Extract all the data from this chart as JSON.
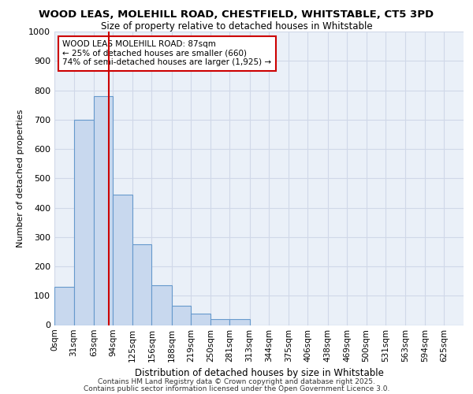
{
  "title1": "WOOD LEAS, MOLEHILL ROAD, CHESTFIELD, WHITSTABLE, CT5 3PD",
  "title2": "Size of property relative to detached houses in Whitstable",
  "xlabel": "Distribution of detached houses by size in Whitstable",
  "ylabel": "Number of detached properties",
  "bin_edges": [
    0,
    31,
    63,
    94,
    125,
    156,
    188,
    219,
    250,
    281,
    313,
    344,
    375,
    406,
    438,
    469,
    500,
    531,
    563,
    594,
    625,
    656
  ],
  "bin_labels": [
    "0sqm",
    "31sqm",
    "63sqm",
    "94sqm",
    "125sqm",
    "156sqm",
    "188sqm",
    "219sqm",
    "250sqm",
    "281sqm",
    "313sqm",
    "344sqm",
    "375sqm",
    "406sqm",
    "438sqm",
    "469sqm",
    "500sqm",
    "531sqm",
    "563sqm",
    "594sqm",
    "625sqm"
  ],
  "bar_heights": [
    130,
    700,
    780,
    445,
    275,
    135,
    65,
    40,
    20,
    20,
    0,
    0,
    0,
    0,
    0,
    0,
    0,
    0,
    0,
    0,
    0
  ],
  "bar_color": "#c8d8ee",
  "bar_edge_color": "#6699cc",
  "property_x": 87,
  "property_label": "WOOD LEAS MOLEHILL ROAD: 87sqm",
  "annotation_line1": "← 25% of detached houses are smaller (660)",
  "annotation_line2": "74% of semi-detached houses are larger (1,925) →",
  "vline_color": "#cc0000",
  "ylim": [
    0,
    1000
  ],
  "xlim": [
    0,
    656
  ],
  "background_color": "#eaf0f8",
  "grid_color": "#d0d8e8",
  "footer1": "Contains HM Land Registry data © Crown copyright and database right 2025.",
  "footer2": "Contains public sector information licensed under the Open Government Licence 3.0."
}
